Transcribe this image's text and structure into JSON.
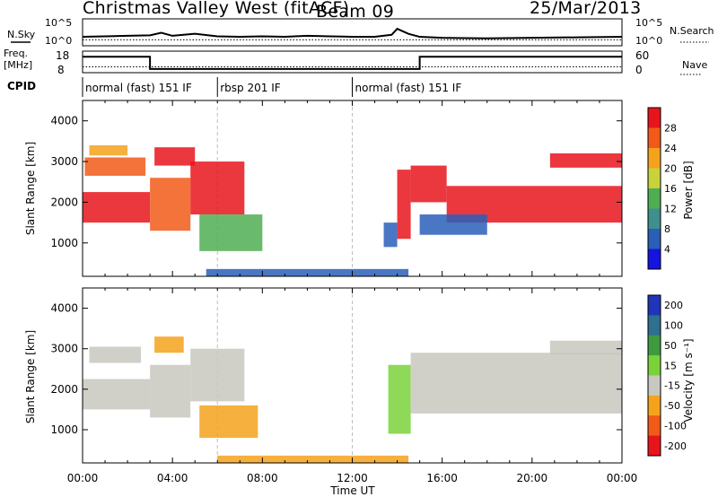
{
  "header": {
    "station": "Christmas Valley West (fitACF)",
    "beam": "Beam 09",
    "date": "25/Mar/2013"
  },
  "left_labels": {
    "nsky": "N.Sky",
    "freq_line1": "Freq.",
    "freq_line2": "[MHz]",
    "cpid": "CPID"
  },
  "right_labels": {
    "nsearch": "N.Search",
    "nave": "Nave"
  },
  "colors": {
    "frame": "#000000",
    "dashed": "#bdbdbd",
    "background": "#ffffff"
  },
  "chart_data": [
    {
      "type": "line",
      "panel": "noise",
      "title": "",
      "left_ticks": [
        "10^5",
        "10^0"
      ],
      "right_ticks": [
        "10^5",
        "10^0"
      ],
      "x": [
        "00:00",
        "01:00",
        "02:00",
        "03:00",
        "03:30",
        "04:00",
        "05:00",
        "06:00",
        "07:00",
        "08:00",
        "09:00",
        "10:00",
        "11:00",
        "12:00",
        "13:00",
        "13:45",
        "14:00",
        "14:30",
        "15:00",
        "16:00",
        "18:00",
        "20:00",
        "22:00",
        "24:00"
      ],
      "series": [
        {
          "values": [
            1.6,
            1.7,
            1.8,
            1.9,
            2.4,
            1.8,
            2.2,
            1.7,
            1.6,
            1.7,
            1.6,
            1.8,
            1.7,
            1.6,
            1.6,
            2.0,
            3.2,
            2.2,
            1.6,
            1.4,
            1.3,
            1.4,
            1.5,
            1.6
          ]
        },
        {
          "values": [
            1.0,
            1.0,
            1.0,
            1.0,
            1.0,
            1.0,
            1.0,
            1.0,
            1.0,
            1.0,
            1.0,
            1.0,
            1.0,
            1.0,
            1.0,
            1.0,
            1.0,
            1.0,
            1.0,
            1.0,
            1.0,
            1.0,
            1.0,
            1.0
          ]
        }
      ]
    },
    {
      "type": "line",
      "panel": "frequency",
      "left_ticks": [
        "18",
        "8"
      ],
      "right_ticks": [
        "60",
        "0"
      ],
      "segments": [
        {
          "start": "00:00",
          "end": "03:00",
          "freq_mhz": 15.6
        },
        {
          "start": "03:00",
          "end": "15:00",
          "freq_mhz": 9.4
        },
        {
          "start": "15:00",
          "end": "24:00",
          "freq_mhz": 15.6
        }
      ],
      "nave_level": 15
    },
    {
      "type": "table",
      "panel": "cpid",
      "segments": [
        {
          "start": "00:00",
          "end": "06:00",
          "label": "normal (fast) 151 IF"
        },
        {
          "start": "06:00",
          "end": "12:00",
          "label": "rbsp 201 IF"
        },
        {
          "start": "12:00",
          "end": "24:00",
          "label": "normal (fast) 151 IF"
        }
      ]
    },
    {
      "type": "heatmap",
      "panel": "power",
      "ylabel": "Slant Range [km]",
      "yticks": [
        1000,
        2000,
        3000,
        4000
      ],
      "ylim": [
        180,
        4500
      ],
      "xlim": [
        "00:00",
        "24:00"
      ],
      "colorbar_label": "Power [dB]",
      "colorbar_ticks": [
        4,
        8,
        12,
        16,
        20,
        24,
        28
      ],
      "colorbar_colors": [
        "#1414e0",
        "#2a5fb8",
        "#3f8f8f",
        "#4fae52",
        "#c9d23a",
        "#f5a21c",
        "#f15a18",
        "#e8141c"
      ],
      "regions": [
        {
          "t0": 0.0,
          "t1": 3.0,
          "r0": 1500,
          "r1": 2250,
          "color": "#e8141c"
        },
        {
          "t0": 0.1,
          "t1": 2.8,
          "r0": 2650,
          "r1": 3100,
          "color": "#f15a18"
        },
        {
          "t0": 0.3,
          "t1": 2.0,
          "r0": 3150,
          "r1": 3400,
          "color": "#f5a21c"
        },
        {
          "t0": 3.0,
          "t1": 4.8,
          "r0": 1300,
          "r1": 2600,
          "color": "#f15a18"
        },
        {
          "t0": 3.2,
          "t1": 5.0,
          "r0": 2900,
          "r1": 3350,
          "color": "#e8141c"
        },
        {
          "t0": 4.8,
          "t1": 7.2,
          "r0": 1700,
          "r1": 3000,
          "color": "#e8141c"
        },
        {
          "t0": 5.2,
          "t1": 8.0,
          "r0": 800,
          "r1": 1700,
          "color": "#4fae52"
        },
        {
          "t0": 13.4,
          "t1": 14.0,
          "r0": 900,
          "r1": 1500,
          "color": "#2a5fb8"
        },
        {
          "t0": 14.0,
          "t1": 14.6,
          "r0": 1100,
          "r1": 2800,
          "color": "#e8141c"
        },
        {
          "t0": 14.6,
          "t1": 16.2,
          "r0": 2000,
          "r1": 2900,
          "color": "#e8141c"
        },
        {
          "t0": 16.2,
          "t1": 24.0,
          "r0": 1500,
          "r1": 2400,
          "color": "#e8141c"
        },
        {
          "t0": 15.0,
          "t1": 18.0,
          "r0": 1200,
          "r1": 1700,
          "color": "#2a5fb8"
        },
        {
          "t0": 20.8,
          "t1": 24.0,
          "r0": 2850,
          "r1": 3200,
          "color": "#e8141c"
        },
        {
          "t0": 5.5,
          "t1": 14.5,
          "r0": 180,
          "r1": 360,
          "color": "#2a5fb8"
        }
      ]
    },
    {
      "type": "heatmap",
      "panel": "velocity",
      "ylabel": "Slant Range [km]",
      "yticks": [
        1000,
        2000,
        3000,
        4000
      ],
      "ylim": [
        180,
        4500
      ],
      "xlim": [
        "00:00",
        "24:00"
      ],
      "xticks": [
        "00:00",
        "04:00",
        "08:00",
        "12:00",
        "16:00",
        "20:00",
        "00:00"
      ],
      "xlabel": "Time UT",
      "colorbar_label": "Velocity [m s⁻¹]",
      "colorbar_ticks": [
        200,
        100,
        50,
        15,
        -15,
        -50,
        -100,
        -200
      ],
      "colorbar_colors": [
        "#2035b8",
        "#2f6f8f",
        "#3f9a3f",
        "#7ad23a",
        "#c8c8c0",
        "#f5a21c",
        "#f15a18",
        "#e8141c"
      ],
      "regions": [
        {
          "t0": 0.0,
          "t1": 3.0,
          "r0": 1500,
          "r1": 2250,
          "color": "#c8c8c0"
        },
        {
          "t0": 0.3,
          "t1": 2.6,
          "r0": 2650,
          "r1": 3050,
          "color": "#c8c8c0"
        },
        {
          "t0": 3.0,
          "t1": 4.8,
          "r0": 1300,
          "r1": 2600,
          "color": "#c8c8c0"
        },
        {
          "t0": 3.2,
          "t1": 4.5,
          "r0": 2900,
          "r1": 3300,
          "color": "#f5a21c"
        },
        {
          "t0": 4.8,
          "t1": 7.2,
          "r0": 1700,
          "r1": 3000,
          "color": "#c8c8c0"
        },
        {
          "t0": 5.2,
          "t1": 7.8,
          "r0": 800,
          "r1": 1600,
          "color": "#f5a21c"
        },
        {
          "t0": 13.6,
          "t1": 14.6,
          "r0": 900,
          "r1": 2600,
          "color": "#7ad23a"
        },
        {
          "t0": 14.6,
          "t1": 24.0,
          "r0": 1400,
          "r1": 2900,
          "color": "#c8c8c0"
        },
        {
          "t0": 20.8,
          "t1": 24.0,
          "r0": 2850,
          "r1": 3200,
          "color": "#c8c8c0"
        },
        {
          "t0": 6.0,
          "t1": 14.5,
          "r0": 180,
          "r1": 360,
          "color": "#f5a21c"
        }
      ]
    }
  ]
}
